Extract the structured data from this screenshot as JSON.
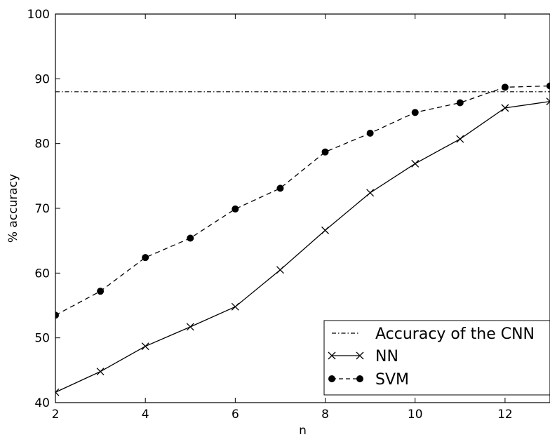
{
  "chart_data": {
    "type": "line",
    "xlabel": "n",
    "ylabel": "% accuracy",
    "xlim": [
      2,
      13
    ],
    "ylim": [
      40,
      100
    ],
    "xticks": [
      2,
      4,
      6,
      8,
      10,
      12
    ],
    "yticks": [
      40,
      50,
      60,
      70,
      80,
      90,
      100
    ],
    "grid": false,
    "legend_position": "lower-right",
    "reference_line": {
      "name": "Accuracy of the CNN",
      "y": 88.0,
      "style": "dash-dot"
    },
    "x": [
      2,
      3,
      4,
      5,
      6,
      7,
      8,
      9,
      10,
      11,
      12,
      13
    ],
    "series": [
      {
        "name": "NN",
        "marker": "x",
        "style": "solid",
        "values": [
          41.6,
          44.8,
          48.7,
          51.7,
          54.8,
          60.5,
          66.6,
          72.4,
          76.9,
          80.7,
          85.5,
          86.5
        ]
      },
      {
        "name": "SVM",
        "marker": "circle",
        "style": "dashed",
        "values": [
          53.5,
          57.2,
          62.4,
          65.4,
          69.9,
          73.1,
          78.7,
          81.6,
          84.8,
          86.3,
          88.7,
          88.9
        ]
      }
    ]
  }
}
